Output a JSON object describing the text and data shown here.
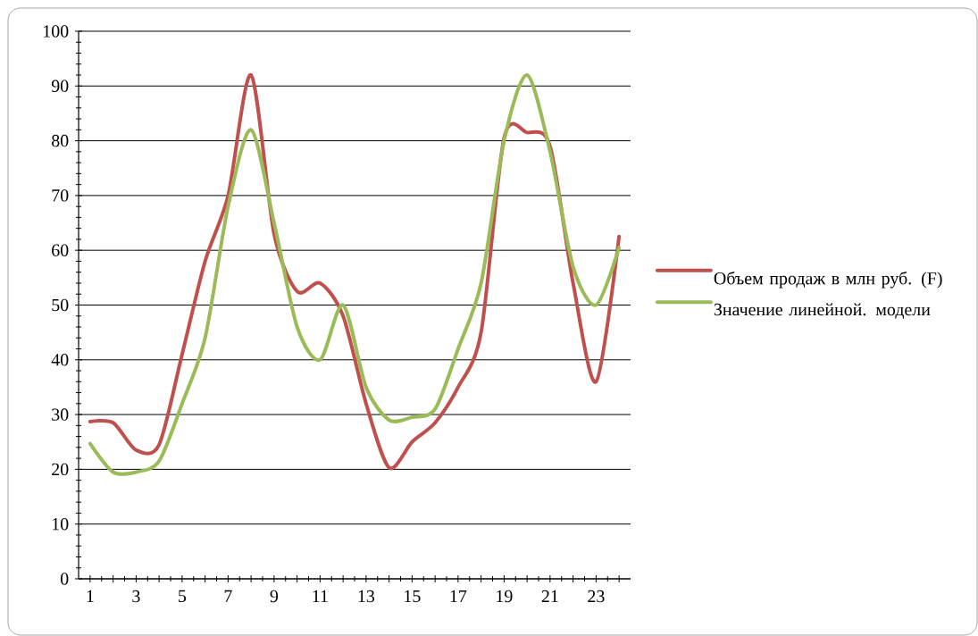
{
  "chart_data": {
    "type": "line",
    "categories": [
      "1",
      null,
      "3",
      null,
      "5",
      null,
      "7",
      null,
      "9",
      null,
      "11",
      null,
      "13",
      null,
      "15",
      null,
      "17",
      null,
      "19",
      null,
      "21",
      null,
      "23",
      null
    ],
    "series": [
      {
        "name": "Объем продаж в млн руб. (F)",
        "color": "#c0504d",
        "values": [
          28.7,
          28.5,
          23.5,
          24.5,
          41,
          58,
          70,
          92,
          63,
          52.5,
          54,
          48,
          32,
          20.3,
          25,
          28.5,
          35,
          45,
          80.5,
          81.5,
          79,
          54,
          36,
          62.5
        ]
      },
      {
        "name": "Значение линейной. модели",
        "color": "#9bbb59",
        "values": [
          24.7,
          19.5,
          19.5,
          21.5,
          32,
          44,
          68,
          82,
          65,
          46,
          40,
          50,
          35,
          29,
          29.5,
          31,
          42,
          54,
          80,
          92,
          78,
          57,
          50,
          60.5
        ]
      }
    ],
    "ylim": [
      0,
      100
    ],
    "yticks": [
      0,
      10,
      20,
      30,
      40,
      50,
      60,
      70,
      80,
      90,
      100
    ],
    "grid": "y",
    "legend": "right",
    "marker": "none",
    "line_style": "solid"
  }
}
